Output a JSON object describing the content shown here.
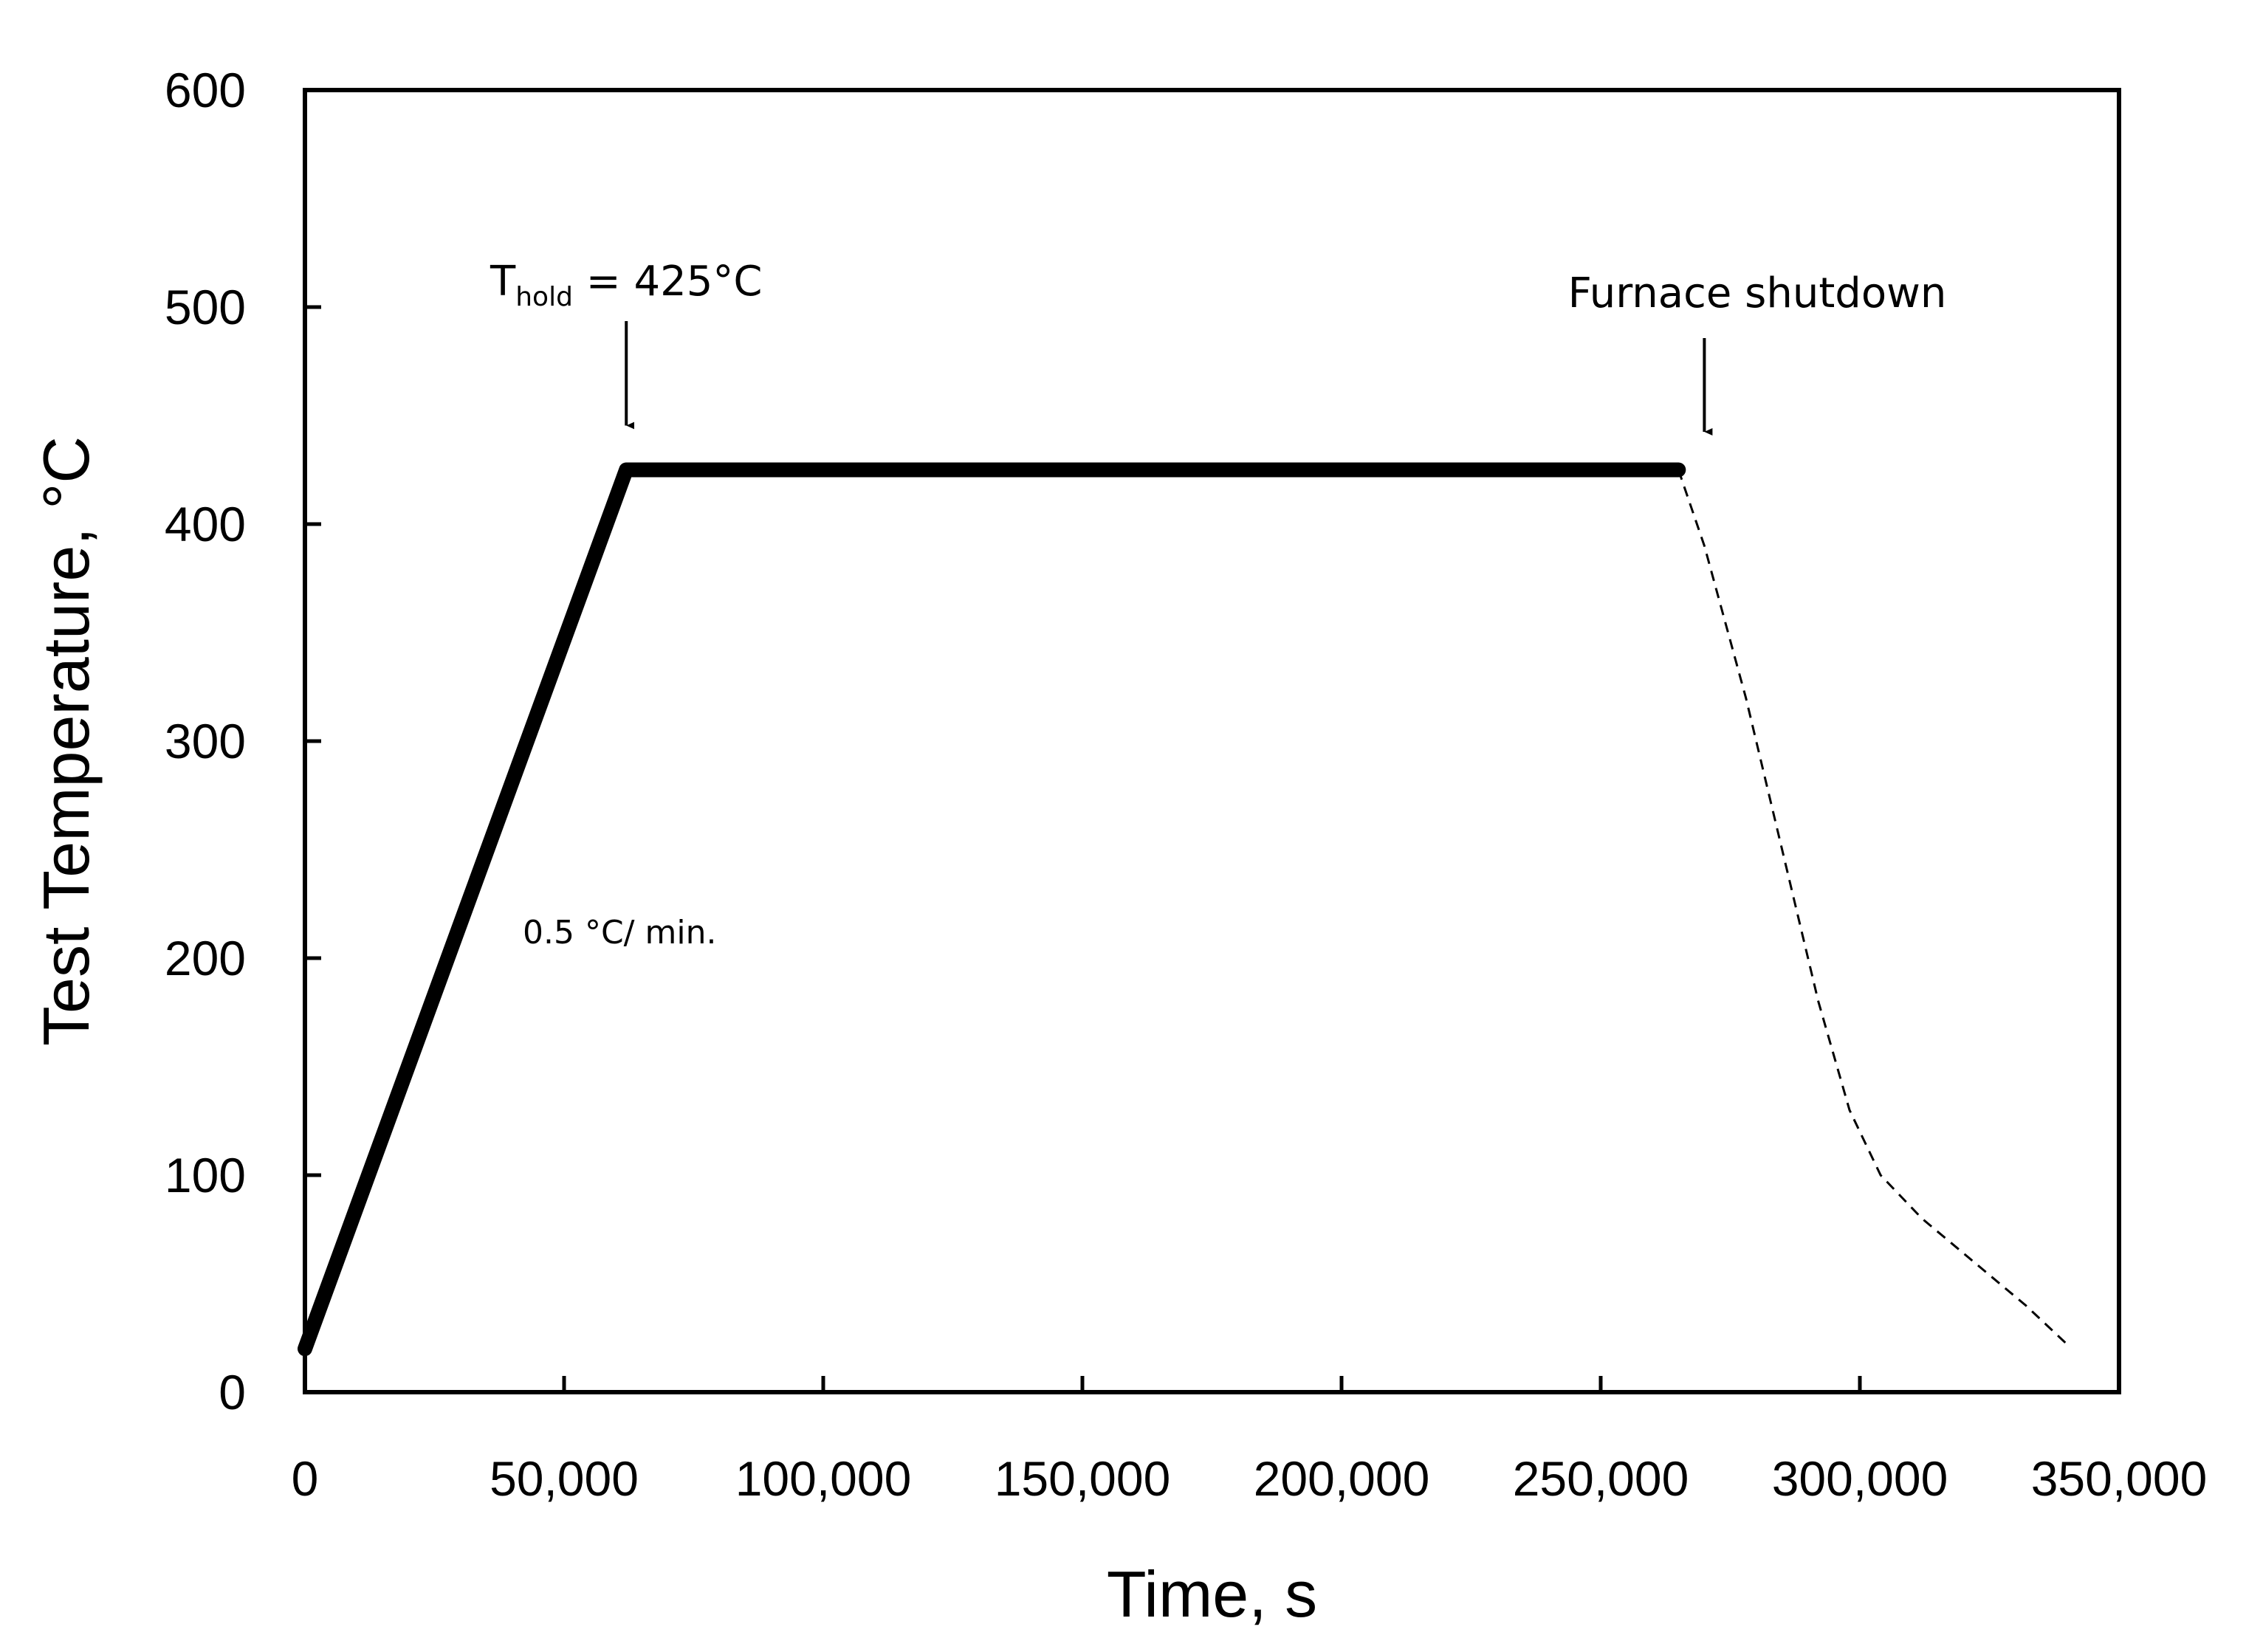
{
  "chart_data": {
    "type": "line",
    "title": "",
    "xlabel": "Time, s",
    "ylabel": "Test Temperature, °C",
    "xlim": [
      0,
      350000
    ],
    "ylim": [
      0,
      600
    ],
    "x_ticks": [
      0,
      50000,
      100000,
      150000,
      200000,
      250000,
      300000,
      350000
    ],
    "x_tick_labels": [
      "0",
      "50,000",
      "100,000",
      "150,000",
      "200,000",
      "250,000",
      "300,000",
      "350,000"
    ],
    "y_ticks": [
      0,
      100,
      200,
      300,
      400,
      500,
      600
    ],
    "y_tick_labels": [
      "0",
      "100",
      "200",
      "300",
      "400",
      "500",
      "600"
    ],
    "grid": false,
    "legend": "none",
    "series": [
      {
        "style": "solid-thick",
        "color": "#000000",
        "x": [
          0,
          62000,
          265000
        ],
        "y": [
          20,
          425,
          425
        ]
      },
      {
        "style": "dashed",
        "color": "#000000",
        "x": [
          265000,
          270000,
          278000,
          285000,
          292000,
          298000,
          304000,
          312000,
          322000,
          332000,
          340000
        ],
        "y": [
          425,
          390,
          320,
          250,
          180,
          130,
          100,
          80,
          60,
          40,
          22
        ]
      }
    ],
    "annotations": {
      "hold": {
        "prefix": "T",
        "subscript": "hold",
        "suffix": " = 425°C",
        "x": 62000,
        "y": 425
      },
      "shutdown": {
        "text": "Furnace shutdown",
        "x": 270000,
        "y": 425
      },
      "rate": {
        "text": "0.5 °C/ min.",
        "x": 42000,
        "y": 212
      }
    }
  }
}
